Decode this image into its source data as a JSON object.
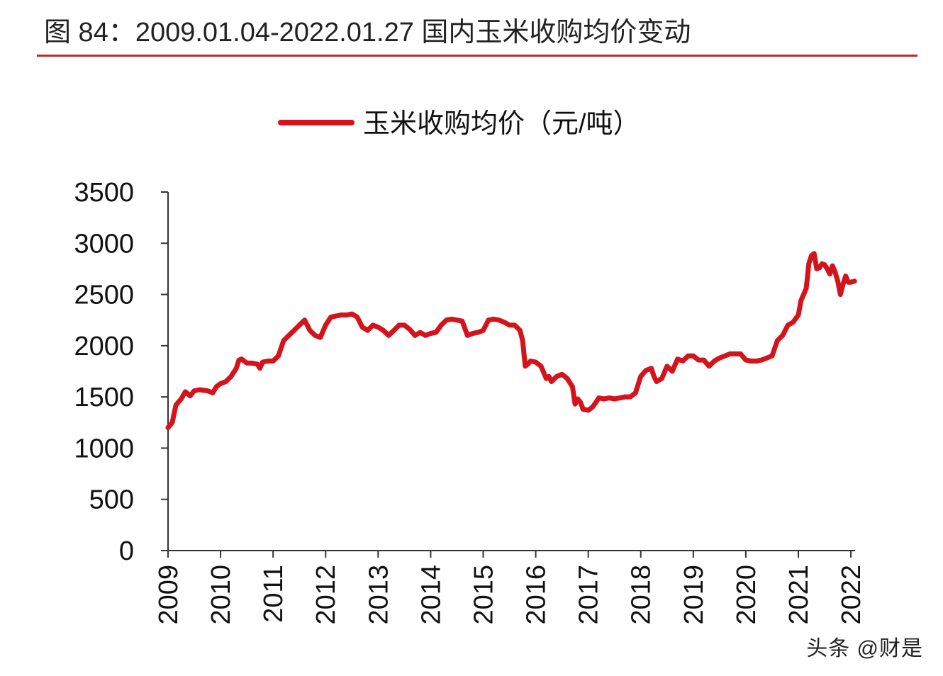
{
  "figure_title": "图 84：2009.01.04-2022.01.27 国内玉米收购均价变动",
  "watermark": "头条 @财是",
  "colors": {
    "series": "#d4141c",
    "title_rule": "#c0282d",
    "axis": "#333333"
  },
  "chart_data": {
    "type": "line",
    "title": "",
    "xlabel": "",
    "ylabel": "",
    "ylim": [
      0,
      3500
    ],
    "xlim": [
      2009.0,
      2022.08
    ],
    "y_ticks": [
      0,
      500,
      1000,
      1500,
      2000,
      2500,
      3000,
      3500
    ],
    "x_ticks": [
      "2009",
      "2010",
      "2011",
      "2012",
      "2013",
      "2014",
      "2015",
      "2016",
      "2017",
      "2018",
      "2019",
      "2020",
      "2021",
      "2022"
    ],
    "grid": false,
    "legend_position": "top-center",
    "series": [
      {
        "name": "玉米收购均价（元/吨）",
        "color": "#d4141c",
        "x": [
          2009.0,
          2009.08,
          2009.15,
          2009.25,
          2009.33,
          2009.42,
          2009.5,
          2009.6,
          2009.75,
          2009.85,
          2009.92,
          2010.0,
          2010.1,
          2010.2,
          2010.3,
          2010.35,
          2010.4,
          2010.45,
          2010.5,
          2010.6,
          2010.7,
          2010.75,
          2010.8,
          2010.9,
          2011.0,
          2011.1,
          2011.2,
          2011.3,
          2011.4,
          2011.5,
          2011.6,
          2011.7,
          2011.8,
          2011.9,
          2012.0,
          2012.1,
          2012.2,
          2012.3,
          2012.4,
          2012.5,
          2012.6,
          2012.7,
          2012.8,
          2012.9,
          2013.0,
          2013.1,
          2013.2,
          2013.3,
          2013.4,
          2013.5,
          2013.6,
          2013.7,
          2013.8,
          2013.9,
          2014.0,
          2014.1,
          2014.2,
          2014.3,
          2014.4,
          2014.5,
          2014.6,
          2014.7,
          2014.8,
          2014.9,
          2015.0,
          2015.1,
          2015.2,
          2015.3,
          2015.4,
          2015.5,
          2015.6,
          2015.7,
          2015.75,
          2015.8,
          2015.85,
          2015.9,
          2016.0,
          2016.1,
          2016.2,
          2016.25,
          2016.3,
          2016.4,
          2016.5,
          2016.6,
          2016.7,
          2016.75,
          2016.8,
          2016.85,
          2016.9,
          2017.0,
          2017.08,
          2017.15,
          2017.2,
          2017.3,
          2017.4,
          2017.5,
          2017.6,
          2017.7,
          2017.8,
          2017.9,
          2018.0,
          2018.1,
          2018.2,
          2018.25,
          2018.3,
          2018.4,
          2018.5,
          2018.6,
          2018.7,
          2018.8,
          2018.9,
          2019.0,
          2019.1,
          2019.2,
          2019.3,
          2019.4,
          2019.5,
          2019.6,
          2019.7,
          2019.8,
          2019.9,
          2020.0,
          2020.1,
          2020.2,
          2020.3,
          2020.4,
          2020.5,
          2020.6,
          2020.7,
          2020.75,
          2020.8,
          2020.9,
          2021.0,
          2021.05,
          2021.1,
          2021.15,
          2021.2,
          2021.25,
          2021.3,
          2021.35,
          2021.4,
          2021.45,
          2021.5,
          2021.55,
          2021.6,
          2021.65,
          2021.7,
          2021.75,
          2021.8,
          2021.85,
          2021.9,
          2021.95,
          2022.0,
          2022.07
        ],
        "values": [
          1200,
          1250,
          1420,
          1480,
          1550,
          1510,
          1560,
          1570,
          1560,
          1540,
          1600,
          1630,
          1650,
          1700,
          1780,
          1860,
          1870,
          1850,
          1830,
          1830,
          1820,
          1780,
          1840,
          1850,
          1850,
          1900,
          2050,
          2100,
          2150,
          2200,
          2250,
          2150,
          2100,
          2080,
          2200,
          2280,
          2290,
          2300,
          2300,
          2310,
          2280,
          2180,
          2150,
          2200,
          2180,
          2150,
          2100,
          2150,
          2200,
          2200,
          2160,
          2100,
          2130,
          2100,
          2120,
          2130,
          2200,
          2250,
          2260,
          2250,
          2240,
          2100,
          2120,
          2130,
          2150,
          2250,
          2260,
          2250,
          2230,
          2200,
          2200,
          2150,
          2050,
          1800,
          1820,
          1850,
          1840,
          1800,
          1680,
          1700,
          1650,
          1700,
          1720,
          1680,
          1600,
          1430,
          1480,
          1450,
          1380,
          1370,
          1400,
          1450,
          1490,
          1480,
          1490,
          1480,
          1490,
          1500,
          1500,
          1540,
          1700,
          1760,
          1780,
          1700,
          1650,
          1680,
          1800,
          1750,
          1870,
          1850,
          1900,
          1900,
          1860,
          1860,
          1800,
          1850,
          1880,
          1900,
          1920,
          1920,
          1920,
          1860,
          1850,
          1850,
          1860,
          1880,
          1900,
          2050,
          2100,
          2150,
          2200,
          2230,
          2300,
          2440,
          2500,
          2560,
          2800,
          2880,
          2900,
          2750,
          2760,
          2800,
          2790,
          2750,
          2700,
          2780,
          2720,
          2630,
          2500,
          2600,
          2680,
          2620,
          2620,
          2630
        ]
      }
    ]
  }
}
